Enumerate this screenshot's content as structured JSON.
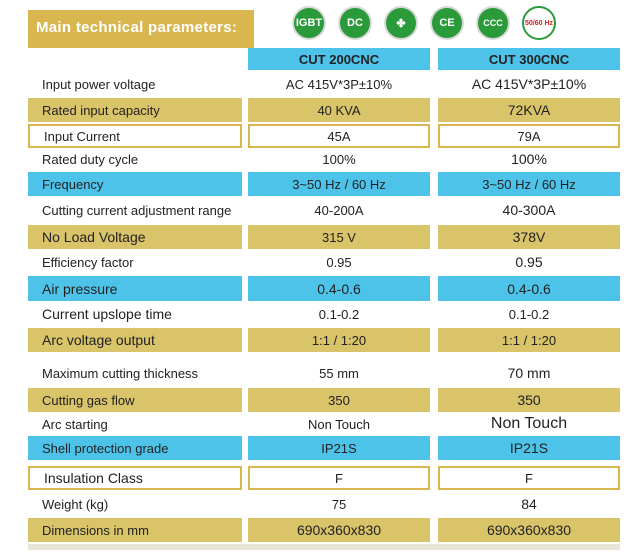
{
  "header": {
    "title": "Main technical parameters:"
  },
  "badges": [
    {
      "name": "igbt-icon",
      "label": "IGBT"
    },
    {
      "name": "dc-icon",
      "label": "DC"
    },
    {
      "name": "fan-icon",
      "label": "✤"
    },
    {
      "name": "ce-icon",
      "label": "CE"
    },
    {
      "name": "ccc-icon",
      "label": "CCC"
    },
    {
      "name": "hz-icon",
      "label": "50/60 Hz"
    }
  ],
  "columns": [
    "CUT 200CNC",
    "CUT 300CNC"
  ],
  "rows": [
    {
      "label": "Input power voltage",
      "v1": "AC 415V*3P±10%",
      "v2": "AC 415V*3P±10%"
    },
    {
      "label": "Rated input capacity",
      "v1": "40 KVA",
      "v2": "72KVA"
    },
    {
      "label": "Input Current",
      "v1": "45A",
      "v2": "79A"
    },
    {
      "label": "Rated duty cycle",
      "v1": "100%",
      "v2": "100%"
    },
    {
      "label": "Frequency",
      "v1": "3~50 Hz / 60 Hz",
      "v2": "3~50 Hz / 60 Hz"
    },
    {
      "label": "Cutting current adjustment range",
      "v1": "40-200A",
      "v2": "40-300A"
    },
    {
      "label": "No Load Voltage",
      "v1": "315 V",
      "v2": "378V"
    },
    {
      "label": "Efficiency factor",
      "v1": "0.95",
      "v2": "0.95"
    },
    {
      "label": "Air pressure",
      "v1": "0.4-0.6",
      "v2": "0.4-0.6"
    },
    {
      "label": "Current upslope time",
      "v1": "0.1-0.2",
      "v2": "0.1-0.2"
    },
    {
      "label": "Arc voltage output",
      "v1": "1:1 / 1:20",
      "v2": "1:1 / 1:20"
    },
    {
      "label": "Maximum cutting thickness",
      "v1": "55 mm",
      "v2": "70 mm"
    },
    {
      "label": "Cutting gas flow",
      "v1": "350",
      "v2": "350"
    },
    {
      "label": "Arc starting",
      "v1": "Non Touch",
      "v2": "Non Touch"
    },
    {
      "label": "Shell protection grade",
      "v1": "IP21S",
      "v2": "IP21S"
    },
    {
      "label": "Insulation Class",
      "v1": "F",
      "v2": "F"
    },
    {
      "label": "Weight (kg)",
      "v1": "75",
      "v2": "84"
    },
    {
      "label": "Dimensions in mm",
      "v1": "690x360x830",
      "v2": "690x360x830"
    }
  ]
}
